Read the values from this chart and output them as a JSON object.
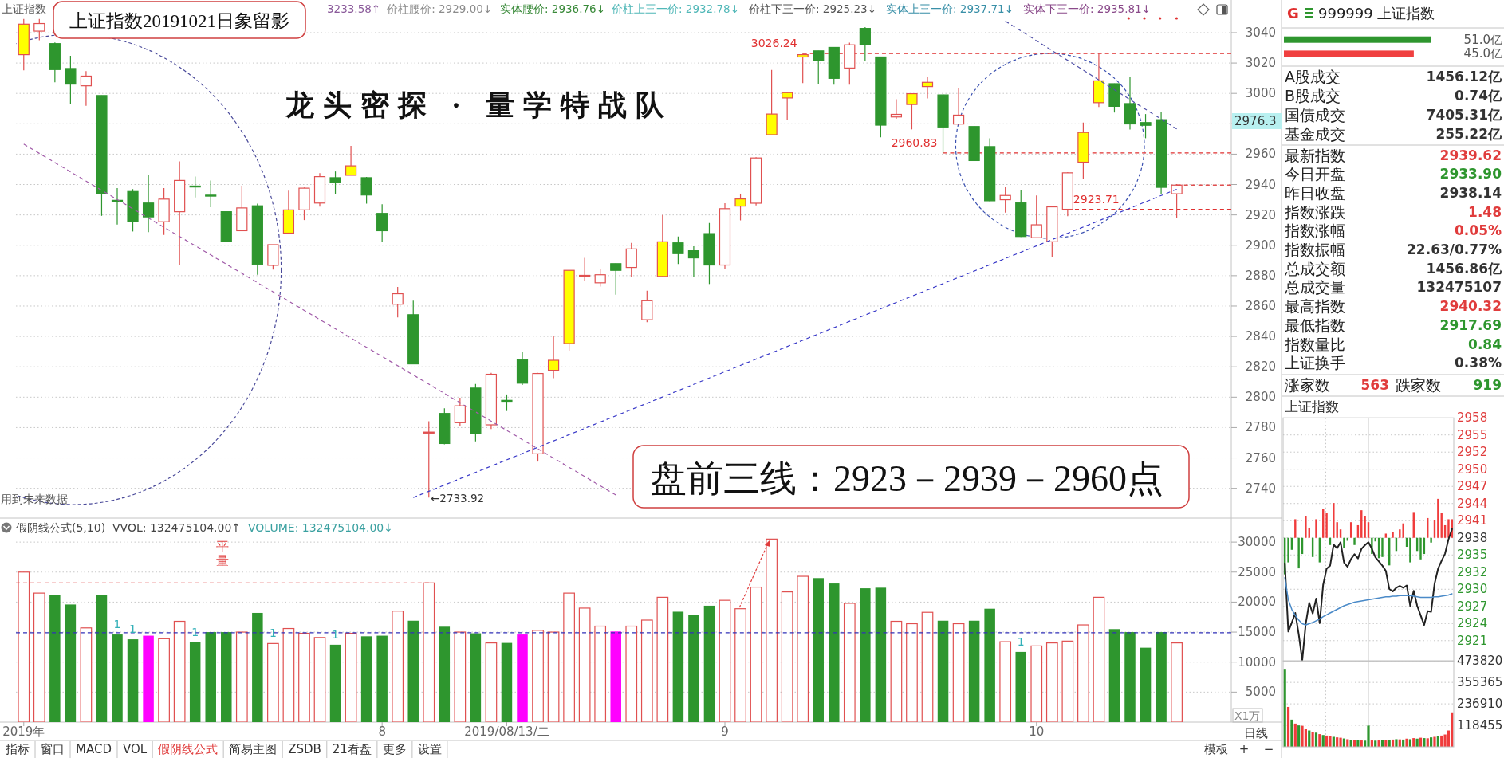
{
  "chart_data": [
    {
      "type": "candlestick",
      "title": "上证指数20191021日象留影",
      "subtitle": "龙头密探 · 量学特战队",
      "annotations": [
        "上证指数",
        "3233.58↑",
        "价柱腰价: 2929.00↓",
        "实体腰价: 2936.76↓",
        "价柱上三一价: 2932.78↓",
        "价柱下三一价: 2925.23↓",
        "实体上三一价: 2937.71↓",
        "实体下三一价: 2935.81↓",
        "2976.3",
        "←2733.92",
        "盘前三线：2923－2939－2960点",
        "用到未来数据"
      ],
      "categories": [
        null,
        null,
        null,
        null,
        null,
        null,
        null,
        null,
        null,
        null,
        null,
        null,
        null,
        null,
        null,
        null,
        null,
        null,
        null,
        null,
        null,
        null,
        null,
        null,
        null,
        null,
        null,
        null,
        null,
        null,
        null,
        null,
        null,
        null,
        null,
        null,
        null,
        null,
        null,
        null,
        null,
        null,
        null,
        null,
        null,
        null,
        null,
        null,
        null,
        null,
        null,
        null,
        null,
        null,
        null,
        null,
        null,
        null,
        null,
        null,
        null,
        null,
        null,
        null,
        null,
        null,
        null,
        null,
        null,
        null,
        null,
        null,
        null,
        null,
        null,
        null,
        null,
        null
      ],
      "ohlc": [
        [
          3025.5,
          3049,
          3015.2,
          3045.6
        ],
        [
          3041,
          3049,
          3035,
          3046
        ],
        [
          3032.8,
          3033.5,
          3007.3,
          3015.7
        ],
        [
          3016.4,
          3024.8,
          2992.9,
          3006.1
        ],
        [
          3005,
          3014.6,
          2991.8,
          3011.4
        ],
        [
          2998.6,
          2998.6,
          2919.4,
          2934.2
        ],
        [
          2929.6,
          2937.6,
          2913.7,
          2929.4
        ],
        [
          2935.4,
          2937,
          2909.1,
          2915.9
        ],
        [
          2927.8,
          2946.3,
          2908.7,
          2918.7
        ],
        [
          2915.5,
          2937.6,
          2906.8,
          2930.4
        ],
        [
          2922.1,
          2955.2,
          2886.8,
          2942.7
        ],
        [
          2939,
          2945.2,
          2931.5,
          2938.6
        ],
        [
          2933,
          2942.7,
          2925.1,
          2932.6
        ],
        [
          2922.1,
          2922.1,
          2902.3,
          2902.3
        ],
        [
          2909.6,
          2939.2,
          2909.6,
          2924.6
        ],
        [
          2926,
          2927.4,
          2880.6,
          2887.4
        ],
        [
          2886.8,
          2900.4,
          2884,
          2900.4
        ],
        [
          2908,
          2936,
          2908,
          2923.3
        ],
        [
          2923.3,
          2938,
          2916.6,
          2937.6
        ],
        [
          2927.8,
          2947.5,
          2925.5,
          2945.2
        ],
        [
          2944.5,
          2948.6,
          2933.8,
          2941.5
        ],
        [
          2946.1,
          2965.5,
          2946.1,
          2952.3
        ],
        [
          2944.5,
          2945,
          2927.4,
          2933.1
        ],
        [
          2921,
          2927,
          2902.3,
          2909.6
        ],
        [
          2861.2,
          2872.6,
          2852.5,
          2868.1
        ],
        [
          2854.3,
          2863.5,
          2821.9,
          2821.9
        ],
        [
          2776.5,
          2784.2,
          2733.92,
          2777
        ],
        [
          2789.3,
          2792.7,
          2769,
          2769.5
        ],
        [
          2783.2,
          2799.6,
          2781,
          2794.3
        ],
        [
          2806,
          2808.7,
          2770.9,
          2775.9
        ],
        [
          2781.8,
          2816,
          2779,
          2815.1
        ],
        [
          2797.9,
          2801.8,
          2790.9,
          2797.5
        ],
        [
          2824.7,
          2829.7,
          2808,
          2809.2
        ],
        [
          2762.7,
          2816,
          2757.6,
          2815.6
        ],
        [
          2817.7,
          2840,
          2812.5,
          2824.3
        ],
        [
          2835.3,
          2883.5,
          2830.6,
          2883.5
        ],
        [
          2879.8,
          2891.7,
          2876.4,
          2880.2
        ],
        [
          2875.3,
          2884.6,
          2872.9,
          2880.6
        ],
        [
          2887.9,
          2888,
          2867.5,
          2883.5
        ],
        [
          2885.4,
          2901.6,
          2879.3,
          2897.6
        ],
        [
          2851,
          2870.1,
          2849.4,
          2863.5
        ],
        [
          2879.5,
          2919.9,
          2879,
          2902.3
        ],
        [
          2901.6,
          2905.8,
          2887.7,
          2894.5
        ],
        [
          2896.4,
          2899.4,
          2879.3,
          2891.7
        ],
        [
          2907.7,
          2914.7,
          2874.5,
          2887
        ],
        [
          2887,
          2927.7,
          2884.6,
          2924.1
        ],
        [
          2925.8,
          2934,
          2916.4,
          2930.5
        ],
        [
          2927.7,
          2958,
          2926.2,
          2957.5
        ],
        [
          2972.8,
          3015.5,
          2972.5,
          2986.4
        ],
        [
          2997,
          3001,
          2982.2,
          3000.5
        ],
        [
          3024,
          3026.24,
          3006.8,
          3025.5
        ],
        [
          3028,
          3028,
          3006.1,
          3021.6
        ],
        [
          3030.3,
          3030.5,
          3005.7,
          3009.9
        ],
        [
          3016.7,
          3033.4,
          3005.7,
          3032
        ],
        [
          3042.8,
          3043.7,
          3021.6,
          3032
        ],
        [
          3024,
          3024,
          2971.1,
          2979.1
        ],
        [
          2984.5,
          2996.2,
          2983.3,
          2986.2
        ],
        [
          2992.7,
          3000,
          2976.3,
          2999.8
        ],
        [
          3004.5,
          3010.8,
          2996.7,
          3007.3
        ],
        [
          2999,
          2999.5,
          2960.83,
          2977.9
        ],
        [
          2979.8,
          3003.3,
          2979.5,
          2985.7
        ],
        [
          2978.2,
          2978.5,
          2955.5,
          2955.8
        ],
        [
          2965,
          2970.4,
          2929,
          2929.3
        ],
        [
          2930,
          2938.7,
          2921.5,
          2932.8
        ],
        [
          2928.1,
          2936.3,
          2905.5,
          2905.8
        ],
        [
          2905,
          2932.8,
          2904.8,
          2913.5
        ],
        [
          2902.3,
          2925.5,
          2892.4,
          2925.3
        ],
        [
          2923.71,
          2948.2,
          2919.2,
          2947.7
        ],
        [
          2954.7,
          2980.8,
          2943.4,
          2974.3
        ],
        [
          2993.9,
          3026.6,
          2991.1,
          3008.3
        ],
        [
          3006.4,
          3006.5,
          2987.4,
          2991.5
        ],
        [
          2993.3,
          3010.7,
          2976.2,
          2979.9
        ],
        [
          2980.8,
          2986.4,
          2970.5,
          2979
        ],
        [
          2982.7,
          2987.8,
          2933.6,
          2938.14
        ],
        [
          2933.9,
          2940.32,
          2917.69,
          2939.62
        ],
        null,
        null,
        null
      ],
      "color": "#e05050",
      "colors": [
        "#ffff00",
        "#ffffff",
        "#2e962e",
        "#2e962e",
        "#ffffff",
        "#2e962e",
        "#2e962e",
        "#2e962e",
        "#2e962e",
        "#ffffff",
        "#ffffff",
        "#2e962e",
        "#2e962e",
        "#2e962e",
        "#ffffff",
        "#2e962e",
        "#ffffff",
        "#ffff00",
        "#ffffff",
        "#ffffff",
        "#2e962e",
        "#ffff00",
        "#2e962e",
        "#2e962e",
        "#ffffff",
        "#2e962e",
        "#ffffff",
        "#2e962e",
        "#ffffff",
        "#2e962e",
        "#ffffff",
        "#2e962e",
        "#2e962e",
        "#ffffff",
        "#ffff00",
        "#ffff00",
        "#ffffff",
        "#ffffff",
        "#2e962e",
        "#ffffff",
        "#ffffff",
        "#ffff00",
        "#2e962e",
        "#2e962e",
        "#2e962e",
        "#ffffff",
        "#ffff00",
        "#ffffff",
        "#ffff00",
        "#ffff00",
        "#ffff00",
        "#2e962e",
        "#2e962e",
        "#ffffff",
        "#2e962e",
        "#2e962e",
        "#ffffff",
        "#ffff00",
        "#ffff00",
        "#2e962e",
        "#ffffff",
        "#2e962e",
        "#2e962e",
        "#ffffff",
        "#2e962e",
        "#ffffff",
        "#ffffff",
        "#ffffff",
        "#ffff00",
        "#ffff00",
        "#2e962e",
        "#2e962e",
        "#2e962e",
        "#2e962e",
        "#ffffff",
        null,
        null,
        null
      ],
      "series": [
        {
          "type": "line",
          "color": "#3a3ac8",
          "line_style": "dashed",
          "values": [
            null,
            null,
            null,
            null,
            null,
            null,
            null,
            null,
            null,
            null,
            null,
            null,
            null,
            null,
            null,
            null,
            null,
            null,
            null,
            null,
            null,
            null,
            null,
            null,
            null,
            2733.9,
            null,
            null,
            null,
            null,
            null,
            null,
            null,
            null,
            null,
            null,
            null,
            null,
            null,
            null,
            null,
            null,
            null,
            null,
            null,
            null,
            null,
            null,
            null,
            null,
            null,
            null,
            null,
            null,
            null,
            null,
            null,
            null,
            null,
            null,
            null,
            null,
            null,
            null,
            null,
            null,
            null,
            null,
            null,
            null,
            null,
            null,
            null,
            null,
            2936.9,
            null,
            null,
            null
          ]
        },
        {
          "type": "line",
          "color": "#a05aa8",
          "line_style": "dashed",
          "values": [
            2966.6,
            null,
            null,
            null,
            null,
            null,
            null,
            null,
            null,
            null,
            null,
            null,
            null,
            null,
            null,
            null,
            null,
            null,
            null,
            null,
            null,
            null,
            null,
            null,
            null,
            null,
            null,
            null,
            null,
            null,
            null,
            null,
            null,
            null,
            null,
            null,
            null,
            null,
            2735.6,
            null,
            null,
            null,
            null,
            null,
            null,
            null,
            null,
            null,
            null,
            null,
            null,
            null,
            null,
            null,
            null,
            null,
            null,
            null,
            null,
            null,
            null,
            null,
            null,
            null,
            null,
            null,
            null,
            null,
            null,
            null,
            null,
            null,
            null,
            null,
            null,
            null,
            null,
            null
          ]
        },
        {
          "type": "line",
          "color": "#5050a8",
          "line_style": "dashed",
          "values": [
            null,
            null,
            null,
            null,
            null,
            null,
            null,
            null,
            null,
            null,
            null,
            null,
            null,
            null,
            null,
            null,
            null,
            null,
            null,
            null,
            null,
            null,
            null,
            null,
            null,
            null,
            null,
            null,
            null,
            null,
            null,
            null,
            null,
            null,
            null,
            null,
            null,
            null,
            null,
            null,
            null,
            null,
            null,
            null,
            null,
            null,
            null,
            null,
            null,
            null,
            null,
            null,
            null,
            null,
            null,
            null,
            null,
            null,
            null,
            null,
            null,
            null,
            null,
            3047.6,
            null,
            null,
            null,
            null,
            null,
            null,
            null,
            null,
            null,
            null,
            2976.6,
            null,
            null,
            null
          ]
        }
      ],
      "ylim": [
        2720.4,
        3061.5
      ],
      "yticks": [
        2740,
        2760,
        2780,
        2800,
        2820,
        2840,
        2860,
        2880,
        2900,
        2920,
        2940,
        2960,
        {
          "value": 2980,
          "label": null
        },
        3000,
        3020,
        3040
      ],
      "grid": "y",
      "ref_lines": [
        {
          "axis": "y",
          "value": 3026.24,
          "label": "3026.24",
          "color": "#e03030",
          "line_style": "dashed"
        },
        {
          "axis": "y",
          "value": 2960.83,
          "label": "2960.83",
          "color": "#e03030",
          "line_style": "dashed"
        },
        {
          "axis": "y",
          "value": 2923.71,
          "label": "2923.71",
          "color": "#e03030",
          "line_style": "dashed"
        }
      ]
    },
    {
      "type": "bar",
      "title": "假阴线公式(5,10)",
      "annotations": [
        "VVOL: 132475104.00↑",
        "VOLUME: 132475104.00↓",
        "1",
        "1",
        "1",
        "1",
        "1",
        "1"
      ],
      "ylabel": "X1万",
      "categories": [
        "2019年",
        null,
        null,
        null,
        null,
        null,
        null,
        null,
        null,
        null,
        null,
        null,
        null,
        null,
        null,
        null,
        null,
        null,
        null,
        null,
        null,
        null,
        null,
        "8",
        null,
        null,
        null,
        null,
        null,
        null,
        null,
        "2019/08/13/二",
        null,
        null,
        null,
        null,
        null,
        null,
        null,
        null,
        null,
        null,
        null,
        null,
        null,
        "9",
        null,
        null,
        null,
        null,
        null,
        null,
        null,
        null,
        null,
        null,
        null,
        null,
        null,
        null,
        null,
        null,
        null,
        null,
        null,
        "10",
        null,
        null,
        null,
        null,
        null,
        null,
        null,
        null,
        null,
        null,
        null,
        null
      ],
      "values": [
        25000,
        21500,
        21200,
        19600,
        15700,
        21200,
        14600,
        13800,
        14400,
        13900,
        16800,
        13300,
        15000,
        15000,
        15000,
        18200,
        13100,
        15600,
        14800,
        14100,
        12900,
        14800,
        14300,
        14400,
        18500,
        16900,
        23200,
        15900,
        15000,
        14800,
        13200,
        13200,
        14600,
        15300,
        15000,
        21500,
        19000,
        16000,
        15100,
        16000,
        17000,
        20800,
        18400,
        17900,
        19400,
        20300,
        18900,
        22500,
        30500,
        21700,
        24300,
        24000,
        23100,
        19800,
        22300,
        22400,
        16800,
        16400,
        18300,
        16900,
        16400,
        16900,
        18900,
        13400,
        11700,
        12700,
        13200,
        13500,
        16200,
        20800,
        15500,
        15000,
        12400,
        15000,
        13200,
        null,
        null,
        null
      ],
      "color": "#e05050",
      "colors": [
        "#e05050",
        "#e05050",
        "#2e962e",
        "#2e962e",
        "#e05050",
        "#2e962e",
        "#2e962e",
        "#2e962e",
        "#ff00ff",
        "#e05050",
        "#e05050",
        "#2e962e",
        "#2e962e",
        "#2e962e",
        "#e05050",
        "#2e962e",
        "#e05050",
        "#e05050",
        "#e05050",
        "#e05050",
        "#2e962e",
        "#e05050",
        "#2e962e",
        "#2e962e",
        "#e05050",
        "#2e962e",
        "#e05050",
        "#2e962e",
        "#e05050",
        "#2e962e",
        "#e05050",
        "#2e962e",
        "#ff00ff",
        "#e05050",
        "#e05050",
        "#e05050",
        "#e05050",
        "#e05050",
        "#ff00ff",
        "#e05050",
        "#e05050",
        "#e05050",
        "#2e962e",
        "#2e962e",
        "#2e962e",
        "#e05050",
        "#e05050",
        "#e05050",
        "#e05050",
        "#e05050",
        "#e05050",
        "#2e962e",
        "#2e962e",
        "#e05050",
        "#2e962e",
        "#2e962e",
        "#e05050",
        "#e05050",
        "#e05050",
        "#2e962e",
        "#e05050",
        "#2e962e",
        "#2e962e",
        "#e05050",
        "#2e962e",
        "#e05050",
        "#e05050",
        "#e05050",
        "#e05050",
        "#e05050",
        "#2e962e",
        "#2e962e",
        "#2e962e",
        "#2e962e",
        "#e05050",
        null,
        null,
        null
      ],
      "ylim": [
        0,
        34000
      ],
      "yticks": [
        5000,
        10000,
        15000,
        20000,
        25000,
        30000
      ],
      "grid": "y",
      "ref_lines": [
        {
          "axis": "y",
          "value": 23200,
          "label": "平量",
          "color": "#e03c3c",
          "line_style": "dashed"
        },
        {
          "axis": "y",
          "value": 14900,
          "color": "#3030b8",
          "line_style": "dashed"
        }
      ]
    },
    {
      "type": "other",
      "annotations": [
        "G",
        "999999 上证指数",
        "A股成交",
        "1456.12亿",
        "B股成交",
        "0.74亿",
        "国债成交",
        "7405.31亿",
        "基金成交",
        "255.22亿",
        "最新指数",
        "2939.62",
        "今日开盘",
        "2933.90",
        "昨日收盘",
        "2938.14",
        "指数涨跌",
        "1.48",
        "指数涨幅",
        "0.05%",
        "指数振幅",
        "22.63/0.77%",
        "总成交额",
        "1456.86亿",
        "总成交量",
        "132475107",
        "最高指数",
        "2940.32",
        "最低指数",
        "2917.69",
        "指数量比",
        "0.84",
        "上证换手",
        "0.38%",
        "涨家数",
        "563",
        "跌家数",
        "919"
      ],
      "colors": [
        "#e03030",
        "#222222",
        "#222222",
        "#333333",
        "#222222",
        "#333333",
        "#222222",
        "#333333",
        "#222222",
        "#333333",
        "#222222",
        "#e03c3c",
        "#222222",
        "#2e962e",
        "#222222",
        "#333333",
        "#222222",
        "#e03c3c",
        "#222222",
        "#e03c3c",
        "#222222",
        "#333333",
        "#222222",
        "#333333",
        "#222222",
        "#333333",
        "#222222",
        "#e03c3c",
        "#222222",
        "#2e962e",
        "#222222",
        "#2e962e",
        "#222222",
        "#333333",
        "#222222",
        "#e03c3c",
        "#222222",
        "#2e962e"
      ]
    },
    {
      "type": "bar",
      "orientation": "horizontal",
      "categories": [
        null,
        null
      ],
      "values": [
        51.0,
        45.0
      ],
      "colors": [
        "#2e962e",
        "#f04040"
      ],
      "value_labels": [
        "51.0亿",
        "45.0亿"
      ],
      "tick_labels": false
    },
    {
      "type": "line",
      "title": "上证指数",
      "categories": [
        null,
        null,
        null,
        null,
        null,
        null,
        null,
        null,
        null,
        null,
        null,
        null,
        null,
        null,
        null,
        null,
        null,
        null,
        null,
        null,
        null,
        null,
        null,
        null,
        null,
        null,
        null,
        null,
        null,
        null,
        null,
        null,
        null,
        null,
        null,
        null,
        null,
        null,
        null,
        null,
        null,
        null,
        null,
        null,
        null,
        null,
        null,
        null,
        null
      ],
      "series": [
        {
          "type": "bar",
          "values": [
            -6.1,
            -4.1,
            -2,
            3.1,
            -5.1,
            -2.7,
            3.6,
            1.7,
            -3.2,
            3.1,
            -4.1,
            4.8,
            4.1,
            -1.2,
            5.8,
            2.6,
            1.4,
            -1.7,
            -0.5,
            2.6,
            -1.2,
            2.1,
            4.6,
            3.6,
            2.6,
            -2.7,
            -0.6,
            -3.4,
            -3.2,
            0.7,
            -4.6,
            0.9,
            -2.2,
            1.4,
            2.4,
            -1.5,
            -4.1,
            4.3,
            -2.2,
            -3.6,
            -2.7,
            3.3,
            -0.8,
            2.9,
            6.5,
            4.1,
            2.1,
            3.1,
            3.1
          ],
          "base": [
            2938.14,
            2938.14,
            2938.14,
            2938.14,
            2938.14,
            2938.14,
            2938.14,
            2938.14,
            2938.14,
            2938.14,
            2938.14,
            2938.14,
            2938.14,
            2938.14,
            2938.14,
            2938.14,
            2938.14,
            2938.14,
            2938.14,
            2938.14,
            2938.14,
            2938.14,
            2938.14,
            2938.14,
            2938.14,
            2938.14,
            2938.14,
            2938.14,
            2938.14,
            2938.14,
            2938.14,
            2938.14,
            2938.14,
            2938.14,
            2938.14,
            2938.14,
            2938.14,
            2938.14,
            2938.14,
            2938.14,
            2938.14,
            2938.14,
            2938.14,
            2938.14,
            2938.14,
            2938.14,
            2938.14,
            2938.14,
            2938.14
          ],
          "colors": [
            "#2e962e",
            "#2e962e",
            "#2e962e",
            "#f03c3c",
            "#2e962e",
            "#2e962e",
            "#f03c3c",
            "#f03c3c",
            "#2e962e",
            "#f03c3c",
            "#2e962e",
            "#f03c3c",
            "#f03c3c",
            "#2e962e",
            "#f03c3c",
            "#f03c3c",
            "#f03c3c",
            "#2e962e",
            "#2e962e",
            "#f03c3c",
            "#2e962e",
            "#f03c3c",
            "#f03c3c",
            "#f03c3c",
            "#f03c3c",
            "#2e962e",
            "#2e962e",
            "#2e962e",
            "#2e962e",
            "#f03c3c",
            "#2e962e",
            "#f03c3c",
            "#2e962e",
            "#f03c3c",
            "#f03c3c",
            "#2e962e",
            "#2e962e",
            "#f03c3c",
            "#2e962e",
            "#2e962e",
            "#2e962e",
            "#f03c3c",
            "#2e962e",
            "#f03c3c",
            "#f03c3c",
            "#f03c3c",
            "#f03c3c",
            "#f03c3c",
            "#f03c3c"
          ]
        },
        {
          "type": "line",
          "color": "#222222",
          "values": [
            2933.9,
            2922.5,
            2924,
            2925.6,
            2922,
            2917.7,
            2923.8,
            2927.3,
            2925.5,
            2928,
            2923.9,
            2930.3,
            2933,
            2933.5,
            2937,
            2936.4,
            2937.4,
            2934,
            2933.3,
            2934.6,
            2935.4,
            2934.7,
            2936.3,
            2936.9,
            2937.4,
            2936.3,
            2934.9,
            2934.2,
            2933.5,
            2932.6,
            2929.6,
            2929.2,
            2929.8,
            2930.1,
            2929.8,
            2930.2,
            2926.8,
            2929.3,
            2926.8,
            2925.2,
            2923.6,
            2925.9,
            2925.8,
            2930.5,
            2933,
            2934.3,
            2935.5,
            2937.9,
            2939.6
          ]
        },
        {
          "type": "line",
          "color": "#4a8ac8",
          "values": [
            2931.5,
            2927.8,
            2926.2,
            2925.2,
            2924.4,
            2923.8,
            2923.6,
            2923.8,
            2924,
            2924.3,
            2924.6,
            2925,
            2925.3,
            2925.6,
            2925.9,
            2926.2,
            2926.5,
            2926.8,
            2927,
            2927.2,
            2927.4,
            2927.5,
            2927.6,
            2927.7,
            2927.8,
            2927.9,
            2928,
            2928.1,
            2928.2,
            2928.3,
            2928.3,
            2928.4,
            2928.4,
            2928.5,
            2928.5,
            2928.5,
            2928.5,
            2928.4,
            2928.3,
            2928.2,
            2928.2,
            2928.2,
            2928.2,
            2928.3,
            2928.3,
            2928.4,
            2928.5,
            2928.6,
            2928.8
          ]
        }
      ],
      "ylim": [
        2917.6,
        2958.16
      ],
      "yticks": [
        {
          "value": 2958.16,
          "label": "2958"
        },
        {
          "value": 2955.3,
          "label": "2955"
        },
        {
          "value": 2952.44,
          "label": "2952"
        },
        {
          "value": 2949.58,
          "label": "2950"
        },
        {
          "value": 2946.72,
          "label": "2947"
        },
        {
          "value": 2943.86,
          "label": "2944"
        },
        {
          "value": 2941.0,
          "label": "2941"
        },
        {
          "value": 2938.14,
          "label": "2938"
        },
        {
          "value": 2935.28,
          "label": "2935"
        },
        {
          "value": 2932.42,
          "label": "2932"
        },
        {
          "value": 2929.56,
          "label": "2930"
        },
        {
          "value": 2926.7,
          "label": "2927"
        },
        {
          "value": 2923.84,
          "label": "2924"
        },
        {
          "value": 2920.98,
          "label": "2921"
        }
      ],
      "grid": "y",
      "tick_labels": "y"
    },
    {
      "type": "bar",
      "categories": [
        null,
        null,
        null,
        null,
        null,
        null,
        null,
        null,
        null,
        null,
        null,
        null,
        null,
        null,
        null,
        null,
        null,
        null,
        null,
        null,
        null,
        null,
        null,
        null,
        null,
        null,
        null,
        null,
        null,
        null,
        null,
        null,
        null,
        null,
        null,
        null,
        null,
        null,
        null,
        null,
        null,
        null,
        null,
        null,
        null,
        null,
        null,
        null,
        null
      ],
      "values": [
        430000,
        220000,
        150000,
        128000,
        118000,
        116000,
        98000,
        90000,
        82000,
        78000,
        70000,
        65000,
        62000,
        60000,
        55000,
        52000,
        50000,
        46000,
        42000,
        39000,
        37000,
        36000,
        35000,
        34000,
        117000,
        35000,
        34000,
        35000,
        37000,
        38000,
        37000,
        40000,
        42000,
        41000,
        40000,
        45000,
        42000,
        48000,
        45000,
        50000,
        48000,
        47000,
        52000,
        55000,
        58000,
        62000,
        68000,
        90000,
        190000
      ],
      "colors": [
        "#2e962e",
        "#f03c3c",
        "#2e962e",
        "#f03c3c",
        "#2e962e",
        "#f03c3c",
        "#f03c3c",
        "#2e962e",
        "#f03c3c",
        "#2e962e",
        "#f03c3c",
        "#2e962e",
        "#f03c3c",
        "#f03c3c",
        "#2e962e",
        "#f03c3c",
        "#f03c3c",
        "#2e962e",
        "#f03c3c",
        "#2e962e",
        "#f03c3c",
        "#2e962e",
        "#f03c3c",
        "#2e962e",
        "#2e962e",
        "#f03c3c",
        "#2e962e",
        "#f03c3c",
        "#2e962e",
        "#f03c3c",
        "#2e962e",
        "#f03c3c",
        "#2e962e",
        "#f03c3c",
        "#2e962e",
        "#f03c3c",
        "#2e962e",
        "#f03c3c",
        "#2e962e",
        "#f03c3c",
        "#2e962e",
        "#f03c3c",
        "#2e962e",
        "#f03c3c",
        "#2e962e",
        "#f03c3c",
        "#f03c3c",
        "#f03c3c",
        "#f03c3c"
      ],
      "ylim": [
        0,
        473820
      ],
      "yticks": [
        118455,
        236910,
        355365,
        473820
      ],
      "grid": "y",
      "tick_labels": "y"
    },
    {
      "type": "other",
      "annotations": [
        "指标",
        "窗口",
        "MACD",
        "VOL",
        "假阴线公式",
        "简易主图",
        "ZSDB",
        "21看盘",
        "更多",
        "设置",
        "模板",
        "+",
        "−",
        "日线"
      ],
      "colors": [
        "#333333",
        "#333333",
        "#333333",
        "#333333",
        "#e03c3c",
        "#333333",
        "#333333",
        "#333333",
        "#333333",
        "#333333",
        "#333333",
        "#333333",
        "#333333",
        "#333333"
      ]
    }
  ]
}
